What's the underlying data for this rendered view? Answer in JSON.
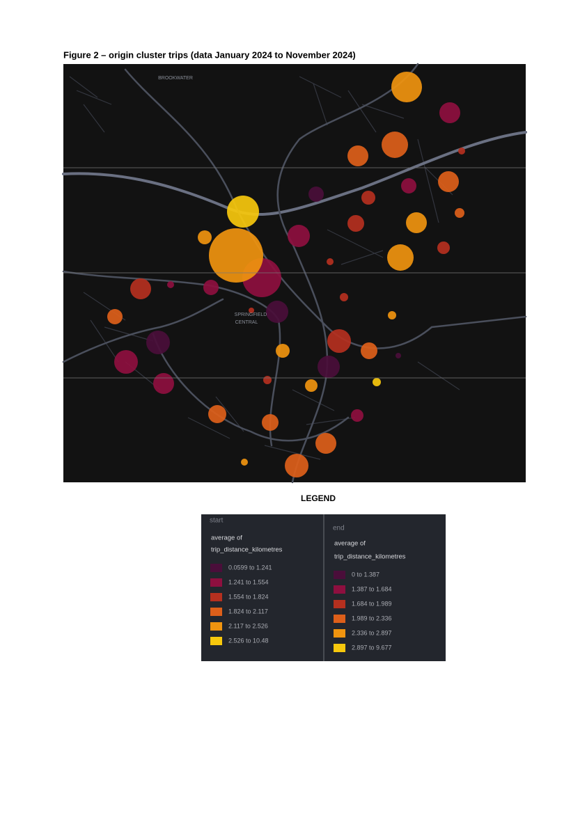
{
  "figure": {
    "title": "Figure 2 – origin cluster trips (data January 2024 to November 2024)",
    "map_labels": [
      "BROOKWATER",
      "SPRINGFIELD",
      "CENTRAL"
    ]
  },
  "legend": {
    "heading": "LEGEND",
    "panels": [
      {
        "name": "start",
        "measure_line1": "average of",
        "measure_line2": "trip_distance_kilometres",
        "items": [
          {
            "label": "0.0599 to 1.241",
            "color": "#4a0e3a"
          },
          {
            "label": "1.241 to 1.554",
            "color": "#8e0f3f"
          },
          {
            "label": "1.554 to 1.824",
            "color": "#b5301f"
          },
          {
            "label": "1.824 to 2.117",
            "color": "#dd5f1a"
          },
          {
            "label": "2.117 to 2.526",
            "color": "#f0940f"
          },
          {
            "label": "2.526 to 10.48",
            "color": "#f7c80d"
          }
        ]
      },
      {
        "name": "end",
        "measure_line1": "average of",
        "measure_line2": "trip_distance_kilometres",
        "items": [
          {
            "label": "0 to 1.387",
            "color": "#4a0e3a"
          },
          {
            "label": "1.387 to 1.684",
            "color": "#8e0f3f"
          },
          {
            "label": "1.684 to 1.989",
            "color": "#b5301f"
          },
          {
            "label": "1.989 to 2.336",
            "color": "#dd5f1a"
          },
          {
            "label": "2.336 to 2.897",
            "color": "#f0940f"
          },
          {
            "label": "2.897 to 9.677",
            "color": "#f7c80d"
          }
        ]
      }
    ]
  }
}
